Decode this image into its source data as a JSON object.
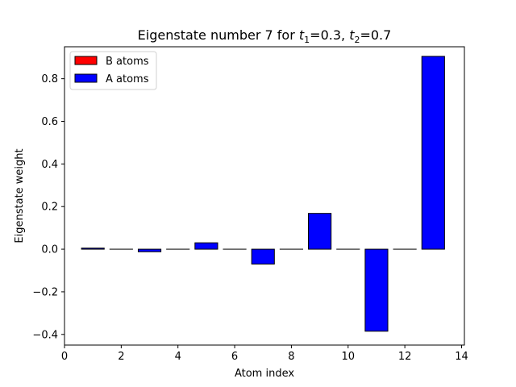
{
  "chart_data": {
    "type": "bar",
    "title": "Eigenstate number 7 for t₁=0.3, t₂=0.7",
    "title_parts": {
      "prefix": "Eigenstate number 7 for ",
      "t1_symbol": "t",
      "t1_sub": "1",
      "t1_value": "=0.3, ",
      "t2_symbol": "t",
      "t2_sub": "2",
      "t2_value": "=0.7"
    },
    "xlabel": "Atom index",
    "ylabel": "Eigenstate weight",
    "xlim": [
      0,
      14.1
    ],
    "ylim": [
      -0.45,
      0.95
    ],
    "xticks": [
      0,
      2,
      4,
      6,
      8,
      10,
      12,
      14
    ],
    "yticks": [
      -0.4,
      -0.2,
      0.0,
      0.2,
      0.4,
      0.6,
      0.8
    ],
    "ytick_labels": [
      "−0.4",
      "−0.2",
      "0.0",
      "0.2",
      "0.4",
      "0.6",
      "0.8"
    ],
    "grid": false,
    "legend_position": "top-left",
    "bar_width": 0.8,
    "series": [
      {
        "name": "B atoms",
        "color": "#ff0000",
        "x": [
          2,
          4,
          6,
          8,
          10,
          12
        ],
        "values": [
          0,
          0,
          0,
          0,
          0,
          0
        ]
      },
      {
        "name": "A atoms",
        "color": "#0000ff",
        "x": [
          1,
          3,
          5,
          7,
          9,
          11,
          13
        ],
        "values": [
          0.005,
          -0.012,
          0.03,
          -0.07,
          0.168,
          -0.385,
          0.905
        ]
      }
    ]
  }
}
